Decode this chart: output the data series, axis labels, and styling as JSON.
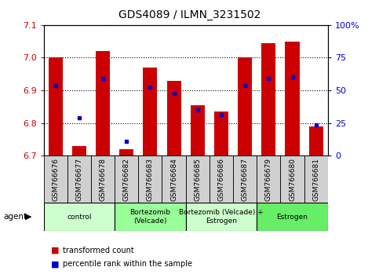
{
  "title": "GDS4089 / ILMN_3231502",
  "samples": [
    "GSM766676",
    "GSM766677",
    "GSM766678",
    "GSM766682",
    "GSM766683",
    "GSM766684",
    "GSM766685",
    "GSM766686",
    "GSM766687",
    "GSM766679",
    "GSM766680",
    "GSM766681"
  ],
  "red_values": [
    7.0,
    6.73,
    7.02,
    6.72,
    6.97,
    6.93,
    6.855,
    6.835,
    7.0,
    7.045,
    7.05,
    6.79
  ],
  "blue_values": [
    6.915,
    6.815,
    6.935,
    6.745,
    6.91,
    6.89,
    6.84,
    6.825,
    6.915,
    6.935,
    6.94,
    6.795
  ],
  "ymin": 6.7,
  "ymax": 7.1,
  "y_ticks": [
    6.7,
    6.8,
    6.9,
    7.0,
    7.1
  ],
  "right_ticks": [
    0,
    25,
    50,
    75,
    100
  ],
  "groups": [
    {
      "label": "control",
      "start": 0,
      "end": 3,
      "color": "#ccffcc"
    },
    {
      "label": "Bortezomib\n(Velcade)",
      "start": 3,
      "end": 6,
      "color": "#99ff99"
    },
    {
      "label": "Bortezomib (Velcade) +\nEstrogen",
      "start": 6,
      "end": 9,
      "color": "#ccffcc"
    },
    {
      "label": "Estrogen",
      "start": 9,
      "end": 12,
      "color": "#66ee66"
    }
  ],
  "bar_color": "#cc0000",
  "blue_color": "#0000cc",
  "bar_width": 0.6,
  "baseline": 6.7,
  "agent_label": "agent",
  "legend_red": "transformed count",
  "legend_blue": "percentile rank within the sample",
  "left_label_color": "#cc0000",
  "right_label_color": "#0000cc",
  "sample_box_color": "#d0d0d0"
}
